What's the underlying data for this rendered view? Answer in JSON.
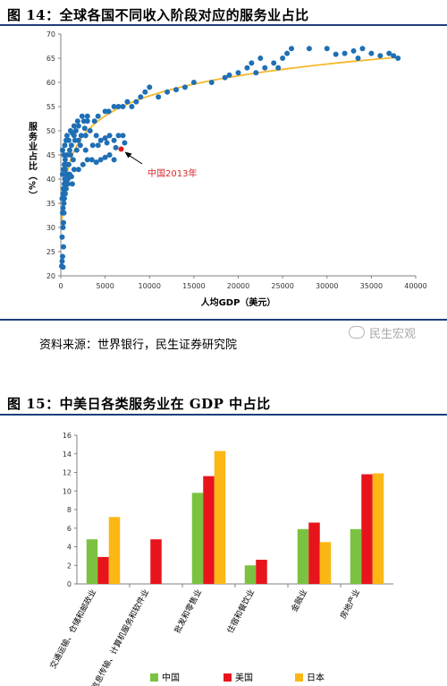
{
  "figure1": {
    "title": "图 14：全球各国不同收入阶段对应的服务业占比",
    "source": "资料来源：世界银行，民生证券研究院",
    "watermark": "民生宏观",
    "chart_data": {
      "type": "scatter",
      "xlabel": "人均GDP（美元）",
      "ylabel": "服务业占比（%）",
      "xlim": [
        0,
        40000
      ],
      "ylim": [
        20,
        70
      ],
      "xticks": [
        "0",
        "5000",
        "10000",
        "15000",
        "20000",
        "25000",
        "30000",
        "35000",
        "40000"
      ],
      "yticks": [
        "20",
        "25",
        "30",
        "35",
        "40",
        "45",
        "50",
        "55",
        "60",
        "65",
        "70"
      ],
      "annotation": {
        "text": "中国2013年",
        "x": 6800,
        "y": 46.2,
        "color": "#d62728"
      },
      "trendline": {
        "type": "logarithmic",
        "color": "#f5b82e"
      },
      "points": [
        [
          100,
          22
        ],
        [
          150,
          23
        ],
        [
          200,
          24
        ],
        [
          250,
          21.8
        ],
        [
          300,
          26
        ],
        [
          150,
          28
        ],
        [
          250,
          30
        ],
        [
          300,
          31
        ],
        [
          200,
          33
        ],
        [
          250,
          34
        ],
        [
          350,
          35
        ],
        [
          150,
          36
        ],
        [
          250,
          37
        ],
        [
          300,
          38
        ],
        [
          400,
          39
        ],
        [
          450,
          40
        ],
        [
          200,
          41
        ],
        [
          300,
          42
        ],
        [
          400,
          43
        ],
        [
          500,
          44
        ],
        [
          350,
          45
        ],
        [
          200,
          46
        ],
        [
          450,
          47
        ],
        [
          600,
          48
        ],
        [
          700,
          49
        ],
        [
          500,
          42
        ],
        [
          600,
          41
        ],
        [
          800,
          41
        ],
        [
          900,
          43
        ],
        [
          700,
          45
        ],
        [
          1000,
          46
        ],
        [
          1200,
          47
        ],
        [
          900,
          48
        ],
        [
          1100,
          50
        ],
        [
          1300,
          49.5
        ],
        [
          1500,
          49
        ],
        [
          1700,
          50
        ],
        [
          1600,
          48
        ],
        [
          2000,
          48
        ],
        [
          2200,
          47
        ],
        [
          1900,
          52
        ],
        [
          2400,
          53
        ],
        [
          2600,
          52
        ],
        [
          3000,
          53
        ],
        [
          3300,
          50
        ],
        [
          2800,
          49
        ],
        [
          4000,
          49
        ],
        [
          4500,
          48
        ],
        [
          5000,
          48.5
        ],
        [
          5500,
          49
        ],
        [
          6000,
          48
        ],
        [
          6500,
          49
        ],
        [
          7000,
          49
        ],
        [
          1500,
          42
        ],
        [
          2000,
          42
        ],
        [
          2500,
          43
        ],
        [
          3000,
          44
        ],
        [
          3500,
          44
        ],
        [
          4000,
          43.5
        ],
        [
          4500,
          44
        ],
        [
          5000,
          44.5
        ],
        [
          5500,
          45
        ],
        [
          6000,
          44
        ],
        [
          1000,
          41
        ],
        [
          1200,
          40.5
        ],
        [
          800,
          40
        ],
        [
          600,
          39
        ],
        [
          1500,
          51
        ],
        [
          2000,
          51
        ],
        [
          3800,
          52
        ],
        [
          4200,
          53
        ],
        [
          5000,
          54
        ],
        [
          5400,
          54
        ],
        [
          6000,
          55
        ],
        [
          7000,
          55
        ],
        [
          7500,
          56
        ],
        [
          8000,
          55
        ],
        [
          9000,
          57
        ],
        [
          9500,
          58
        ],
        [
          10000,
          59
        ],
        [
          11000,
          57
        ],
        [
          12000,
          58
        ],
        [
          14000,
          59
        ],
        [
          15000,
          60
        ],
        [
          17000,
          60
        ],
        [
          18500,
          61
        ],
        [
          20000,
          62
        ],
        [
          21000,
          63
        ],
        [
          21500,
          64
        ],
        [
          22000,
          62
        ],
        [
          23000,
          63
        ],
        [
          24000,
          64
        ],
        [
          25000,
          65
        ],
        [
          25500,
          66
        ],
        [
          26000,
          67
        ],
        [
          24500,
          63
        ],
        [
          28000,
          67
        ],
        [
          30000,
          67
        ],
        [
          32000,
          66
        ],
        [
          33000,
          66.5
        ],
        [
          34000,
          67
        ],
        [
          35000,
          66
        ],
        [
          36000,
          65.5
        ],
        [
          37000,
          66
        ],
        [
          37500,
          65.5
        ],
        [
          38000,
          65
        ],
        [
          33500,
          65
        ],
        [
          31000,
          65.8
        ],
        [
          22500,
          65
        ],
        [
          19000,
          61.5
        ],
        [
          13000,
          58.5
        ],
        [
          8500,
          56
        ],
        [
          6500,
          55
        ],
        [
          3000,
          52
        ],
        [
          2700,
          50.5
        ],
        [
          2300,
          49
        ],
        [
          1800,
          46
        ],
        [
          1400,
          44
        ],
        [
          1100,
          45
        ],
        [
          700,
          43
        ],
        [
          500,
          37
        ],
        [
          400,
          36
        ],
        [
          350,
          33
        ],
        [
          600,
          38
        ],
        [
          800,
          39
        ],
        [
          1300,
          39
        ],
        [
          2800,
          46
        ],
        [
          3600,
          47
        ],
        [
          4200,
          47
        ],
        [
          5200,
          47.5
        ],
        [
          6200,
          46.5
        ],
        [
          7200,
          47.5
        ]
      ],
      "highlight": [
        6800,
        46.2
      ]
    }
  },
  "figure2": {
    "title": "图 15：中美日各类服务业在 GDP 中占比",
    "chart_data": {
      "type": "bar",
      "categories": [
        "交通运输、仓储和邮政业",
        "信息传输、计算机服务和软件业",
        "批发和零售业",
        "住宿和餐饮业",
        "金融业",
        "房地产业"
      ],
      "ylim": [
        0,
        16
      ],
      "yticks": [
        "0",
        "2",
        "4",
        "6",
        "8",
        "10",
        "12",
        "14",
        "16"
      ],
      "legend_position": "bottom",
      "series": [
        {
          "name": "中国",
          "color": "#7cc242",
          "values": [
            4.8,
            null,
            9.8,
            2.0,
            5.9,
            5.9
          ]
        },
        {
          "name": "美国",
          "color": "#e8141b",
          "values": [
            2.9,
            4.8,
            11.6,
            2.6,
            6.6,
            11.8
          ]
        },
        {
          "name": "日本",
          "color": "#fbb714",
          "values": [
            7.2,
            null,
            14.3,
            null,
            4.5,
            11.9
          ]
        }
      ]
    }
  }
}
